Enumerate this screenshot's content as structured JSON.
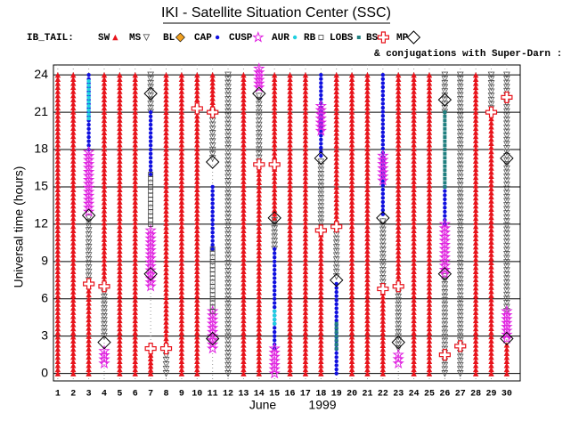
{
  "chart_data": {
    "type": "timeline",
    "title": "IKI - Satellite Situation Center (SSC)",
    "subtitle": "IB_TAIL:",
    "note": "& conjugations with Super-Darn :",
    "xlabel": "June",
    "xlabel_year": "1999",
    "ylabel": "Universal time (hours)",
    "xlim": [
      0.72,
      30.87
    ],
    "ylim": [
      -0.6,
      24.8
    ],
    "xticks": [
      1,
      2,
      3,
      4,
      5,
      6,
      7,
      8,
      9,
      10,
      11,
      12,
      13,
      14,
      15,
      16,
      17,
      18,
      19,
      20,
      21,
      22,
      23,
      24,
      25,
      26,
      27,
      28,
      29,
      30
    ],
    "yticks": [
      0,
      3,
      6,
      9,
      12,
      15,
      18,
      21,
      24
    ],
    "grid": true,
    "series": [
      {
        "name": "SW",
        "color": "#e8141c",
        "marker": "triangle",
        "segments": [
          [
            1,
            0,
            24
          ],
          [
            2,
            0,
            24
          ],
          [
            3,
            0,
            7
          ],
          [
            4,
            7.5,
            24
          ],
          [
            5,
            0,
            24
          ],
          [
            6,
            0,
            24
          ],
          [
            7,
            0,
            1.5
          ],
          [
            8,
            2.5,
            24
          ],
          [
            9,
            0,
            24
          ],
          [
            10,
            0,
            24
          ],
          [
            11,
            21.5,
            24
          ],
          [
            13,
            0,
            24
          ],
          [
            14,
            0,
            17
          ],
          [
            15,
            12.5,
            24
          ],
          [
            16,
            0,
            24
          ],
          [
            17,
            0,
            24
          ],
          [
            18,
            0,
            11.5
          ],
          [
            19,
            12,
            24
          ],
          [
            20,
            0,
            24
          ],
          [
            21,
            0,
            24
          ],
          [
            22,
            0,
            6.5
          ],
          [
            23,
            7.5,
            24
          ],
          [
            24,
            0,
            24
          ],
          [
            25,
            0,
            24
          ],
          [
            28,
            0,
            24
          ],
          [
            29,
            0,
            20.5
          ],
          [
            30,
            0,
            2.3
          ]
        ]
      },
      {
        "name": "MS",
        "color": "#555555",
        "marker": "tridown",
        "segments": [
          [
            3,
            7.5,
            12.5
          ],
          [
            4,
            3,
            6.8
          ],
          [
            7,
            21,
            24
          ],
          [
            8,
            0,
            1.8
          ],
          [
            11,
            17.3,
            21
          ],
          [
            12,
            0,
            24
          ],
          [
            14,
            17,
            22.3
          ],
          [
            15,
            10,
            12.3
          ],
          [
            18,
            11.8,
            17
          ],
          [
            19,
            7.8,
            11.5
          ],
          [
            22,
            7,
            12.2
          ],
          [
            23,
            2,
            6.8
          ],
          [
            26,
            0,
            7.8
          ],
          [
            26,
            21,
            24
          ],
          [
            27,
            0,
            24
          ],
          [
            29,
            21.3,
            24
          ],
          [
            30,
            5,
            24
          ]
        ]
      },
      {
        "name": "BL",
        "color": "#f0a020",
        "marker": "diamondfill",
        "segments": []
      },
      {
        "name": "CAP",
        "color": "#1010e0",
        "marker": "dot",
        "segments": [
          [
            3,
            18,
            24
          ],
          [
            7,
            16,
            21
          ],
          [
            11,
            10,
            15
          ],
          [
            15,
            2,
            10
          ],
          [
            18,
            17.5,
            24
          ],
          [
            19,
            0,
            7.2
          ],
          [
            22,
            12.8,
            24
          ],
          [
            26,
            12,
            15
          ]
        ]
      },
      {
        "name": "CUSP",
        "color": "#e020e0",
        "marker": "star",
        "segments": [
          [
            3,
            13,
            17.8
          ],
          [
            4,
            0.8,
            1.8
          ],
          [
            7,
            7,
            11.5
          ],
          [
            11,
            2,
            5
          ],
          [
            14,
            23,
            24.5
          ],
          [
            15,
            0,
            2
          ],
          [
            18,
            19.5,
            21.5
          ],
          [
            22,
            15.5,
            17.5
          ],
          [
            23,
            0.8,
            1.5
          ],
          [
            26,
            8,
            12
          ],
          [
            30,
            2.8,
            5
          ]
        ]
      },
      {
        "name": "AUR",
        "color": "#20d0e0",
        "marker": "dot",
        "segments": [
          [
            3,
            20.5,
            23.5
          ],
          [
            15,
            4,
            5
          ]
        ]
      },
      {
        "name": "RB",
        "color": "#444444",
        "marker": "square",
        "segments": [
          [
            7,
            12,
            16
          ],
          [
            11,
            5,
            10
          ]
        ]
      },
      {
        "name": "LOBS",
        "color": "#208080",
        "marker": "smallsquare",
        "segments": [
          [
            26,
            15,
            21
          ],
          [
            19,
            2,
            4
          ]
        ]
      },
      {
        "name": "BS",
        "color": "#e8141c",
        "marker": "cross",
        "points": [
          [
            3,
            7.2
          ],
          [
            4,
            7
          ],
          [
            7,
            2
          ],
          [
            8,
            2
          ],
          [
            10,
            21.3
          ],
          [
            11,
            21
          ],
          [
            14,
            16.8
          ],
          [
            15,
            16.8
          ],
          [
            18,
            11.5
          ],
          [
            19,
            11.8
          ],
          [
            22,
            6.8
          ],
          [
            23,
            7
          ],
          [
            26,
            1.5
          ],
          [
            27,
            2.2
          ],
          [
            29,
            21
          ],
          [
            30,
            22.2
          ]
        ]
      },
      {
        "name": "MP",
        "color": "#000000",
        "marker": "diamond",
        "points": [
          [
            3,
            12.7
          ],
          [
            4,
            2.5
          ],
          [
            7,
            8
          ],
          [
            7,
            22.5
          ],
          [
            11,
            2.8
          ],
          [
            11,
            17
          ],
          [
            14,
            22.5
          ],
          [
            15,
            12.5
          ],
          [
            18,
            17.3
          ],
          [
            19,
            7.5
          ],
          [
            22,
            12.5
          ],
          [
            23,
            2.5
          ],
          [
            26,
            8
          ],
          [
            26,
            22
          ],
          [
            30,
            2.8
          ],
          [
            30,
            17.3
          ]
        ]
      }
    ]
  }
}
